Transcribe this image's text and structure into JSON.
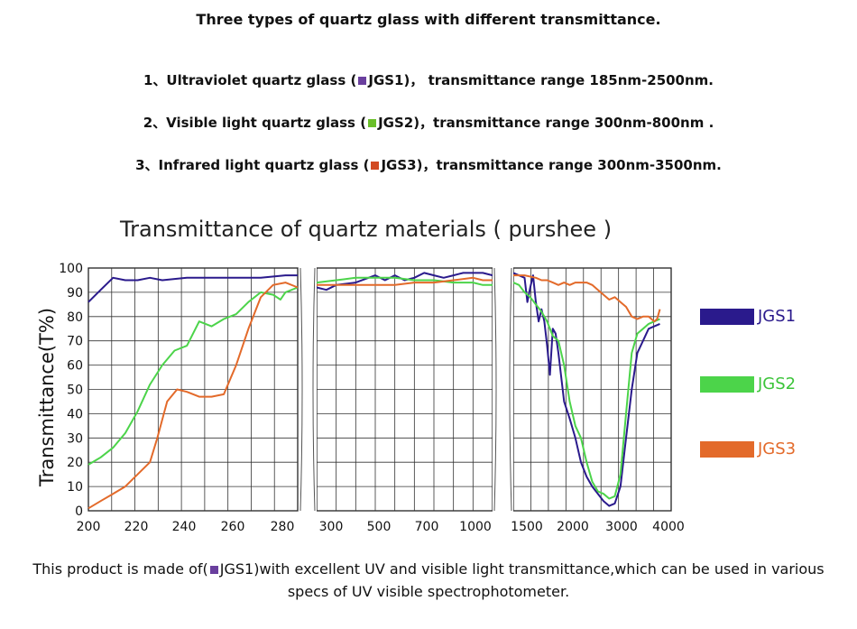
{
  "header": {
    "title": "Three types of quartz glass with different transmittance.",
    "items": [
      {
        "prefix": "1、Ultraviolet quartz glass (",
        "swatch": "#6a3f9e",
        "code": "JGS1",
        "suffix": ")， transmittance range 185nm-2500nm."
      },
      {
        "prefix": "2、Visible light quartz glass (",
        "swatch": "#6abf2a",
        "code": "JGS2",
        "suffix": ")，transmittance range 300nm-800nm ."
      },
      {
        "prefix": "3、Infrared light quartz glass (",
        "swatch": "#d24a22",
        "code": "JGS3",
        "suffix": ")，transmittance range 300nm-3500nm."
      }
    ]
  },
  "chart_data": {
    "type": "line",
    "title": "Transmittance of quartz materials ( purshee )",
    "ylabel": "Transmittance(T%)",
    "xlabel": "",
    "ylim": [
      0,
      100
    ],
    "yticks": [
      "0",
      "10",
      "20",
      "30",
      "40",
      "50",
      "60",
      "70",
      "80",
      "90",
      "100"
    ],
    "grid": true,
    "legend_position": "right",
    "panels": [
      {
        "xlim": [
          200,
          285
        ],
        "xticks": [
          "200",
          "220",
          "240",
          "260",
          "280"
        ]
      },
      {
        "xlim": [
          200,
          1100
        ],
        "xticks": [
          "300",
          "500",
          "700",
          "1000"
        ]
      },
      {
        "xlim": [
          1200,
          4000
        ],
        "xticks": [
          "1500",
          "2000",
          "3000",
          "4000"
        ]
      }
    ],
    "series": [
      {
        "name": "JGS1",
        "color": "#2a1a8c",
        "panels": [
          [
            [
              200,
              86
            ],
            [
              205,
              91
            ],
            [
              210,
              96
            ],
            [
              215,
              95
            ],
            [
              220,
              95
            ],
            [
              225,
              96
            ],
            [
              230,
              95
            ],
            [
              240,
              96
            ],
            [
              250,
              96
            ],
            [
              260,
              96
            ],
            [
              270,
              96
            ],
            [
              280,
              97
            ],
            [
              285,
              97
            ]
          ],
          [
            [
              200,
              92
            ],
            [
              250,
              91
            ],
            [
              300,
              93
            ],
            [
              400,
              94
            ],
            [
              500,
              97
            ],
            [
              550,
              95
            ],
            [
              600,
              97
            ],
            [
              650,
              95
            ],
            [
              700,
              96
            ],
            [
              750,
              98
            ],
            [
              800,
              97
            ],
            [
              850,
              96
            ],
            [
              900,
              97
            ],
            [
              950,
              98
            ],
            [
              1000,
              98
            ],
            [
              1050,
              98
            ],
            [
              1100,
              97
            ]
          ],
          [
            [
              1200,
              98
            ],
            [
              1400,
              96
            ],
            [
              1450,
              86
            ],
            [
              1500,
              92
            ],
            [
              1550,
              97
            ],
            [
              1600,
              86
            ],
            [
              1650,
              78
            ],
            [
              1700,
              83
            ],
            [
              1750,
              78
            ],
            [
              1800,
              68
            ],
            [
              1850,
              56
            ],
            [
              1900,
              75
            ],
            [
              1950,
              73
            ],
            [
              2000,
              65
            ],
            [
              2100,
              45
            ],
            [
              2200,
              38
            ],
            [
              2300,
              30
            ],
            [
              2400,
              20
            ],
            [
              2500,
              14
            ],
            [
              2600,
              10
            ],
            [
              2700,
              7
            ],
            [
              2800,
              4
            ],
            [
              2900,
              2
            ],
            [
              3000,
              3
            ],
            [
              3100,
              10
            ],
            [
              3200,
              30
            ],
            [
              3300,
              50
            ],
            [
              3400,
              65
            ],
            [
              3500,
              70
            ],
            [
              3600,
              75
            ],
            [
              3700,
              76
            ],
            [
              3800,
              77
            ]
          ]
        ]
      },
      {
        "name": "JGS2",
        "color": "#4cd44a",
        "panels": [
          [
            [
              200,
              19
            ],
            [
              205,
              22
            ],
            [
              210,
              26
            ],
            [
              215,
              32
            ],
            [
              220,
              41
            ],
            [
              225,
              52
            ],
            [
              230,
              60
            ],
            [
              235,
              66
            ],
            [
              240,
              68
            ],
            [
              245,
              78
            ],
            [
              250,
              76
            ],
            [
              255,
              79
            ],
            [
              260,
              81
            ],
            [
              265,
              86
            ],
            [
              270,
              90
            ],
            [
              275,
              89
            ],
            [
              278,
              87
            ],
            [
              280,
              90
            ],
            [
              285,
              92
            ]
          ],
          [
            [
              200,
              94
            ],
            [
              300,
              95
            ],
            [
              400,
              96
            ],
            [
              500,
              96
            ],
            [
              600,
              96
            ],
            [
              700,
              95
            ],
            [
              800,
              95
            ],
            [
              900,
              94
            ],
            [
              1000,
              94
            ],
            [
              1050,
              93
            ],
            [
              1100,
              93
            ]
          ],
          [
            [
              1200,
              94
            ],
            [
              1300,
              93
            ],
            [
              1400,
              90
            ],
            [
              1500,
              88
            ],
            [
              1600,
              85
            ],
            [
              1700,
              82
            ],
            [
              1800,
              78
            ],
            [
              1900,
              72
            ],
            [
              2000,
              70
            ],
            [
              2100,
              60
            ],
            [
              2200,
              45
            ],
            [
              2300,
              35
            ],
            [
              2400,
              30
            ],
            [
              2500,
              20
            ],
            [
              2600,
              12
            ],
            [
              2700,
              8
            ],
            [
              2800,
              7
            ],
            [
              2900,
              5
            ],
            [
              3000,
              6
            ],
            [
              3100,
              15
            ],
            [
              3200,
              40
            ],
            [
              3300,
              65
            ],
            [
              3400,
              73
            ],
            [
              3500,
              75
            ],
            [
              3600,
              77
            ],
            [
              3700,
              78
            ],
            [
              3800,
              79
            ]
          ]
        ]
      },
      {
        "name": "JGS3",
        "color": "#e36a2a",
        "panels": [
          [
            [
              200,
              1
            ],
            [
              205,
              4
            ],
            [
              210,
              7
            ],
            [
              215,
              10
            ],
            [
              220,
              15
            ],
            [
              225,
              20
            ],
            [
              228,
              30
            ],
            [
              232,
              45
            ],
            [
              236,
              50
            ],
            [
              240,
              49
            ],
            [
              245,
              47
            ],
            [
              250,
              47
            ],
            [
              255,
              48
            ],
            [
              260,
              60
            ],
            [
              265,
              75
            ],
            [
              270,
              88
            ],
            [
              275,
              93
            ],
            [
              280,
              94
            ],
            [
              285,
              92
            ]
          ],
          [
            [
              200,
              93
            ],
            [
              300,
              93
            ],
            [
              400,
              93
            ],
            [
              500,
              93
            ],
            [
              600,
              93
            ],
            [
              700,
              94
            ],
            [
              800,
              94
            ],
            [
              900,
              95
            ],
            [
              1000,
              96
            ],
            [
              1050,
              95
            ],
            [
              1100,
              95
            ]
          ],
          [
            [
              1200,
              97
            ],
            [
              1400,
              97
            ],
            [
              1600,
              96
            ],
            [
              1700,
              95
            ],
            [
              1800,
              95
            ],
            [
              1900,
              94
            ],
            [
              2000,
              93
            ],
            [
              2100,
              94
            ],
            [
              2200,
              93
            ],
            [
              2300,
              94
            ],
            [
              2400,
              94
            ],
            [
              2500,
              94
            ],
            [
              2600,
              93
            ],
            [
              2700,
              91
            ],
            [
              2800,
              89
            ],
            [
              2900,
              87
            ],
            [
              3000,
              88
            ],
            [
              3100,
              86
            ],
            [
              3200,
              84
            ],
            [
              3300,
              80
            ],
            [
              3400,
              79
            ],
            [
              3500,
              80
            ],
            [
              3600,
              80
            ],
            [
              3700,
              78
            ],
            [
              3750,
              79
            ],
            [
              3800,
              83
            ]
          ]
        ]
      }
    ]
  },
  "footer": {
    "prefix": "This product is made of(",
    "swatch": "#6a3f9e",
    "code": "JGS1",
    "suffix": ")with excellent UV and visible light transmittance,which can be used in various specs of UV visible spectrophotometer."
  }
}
